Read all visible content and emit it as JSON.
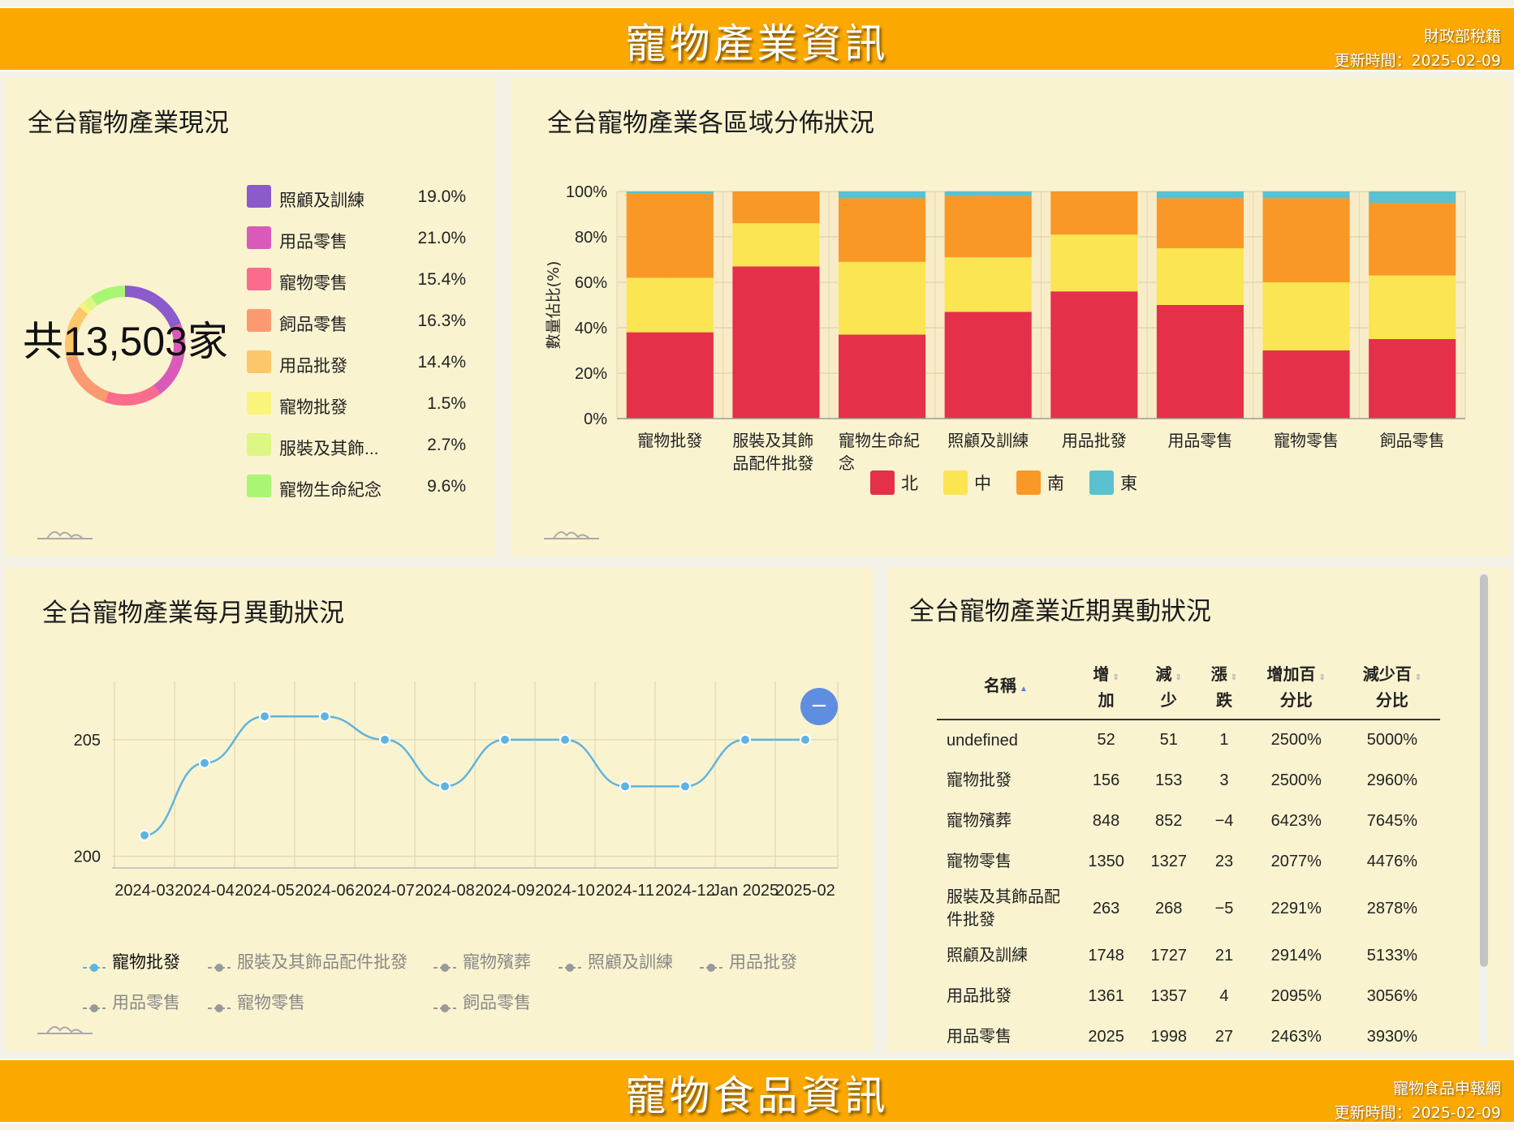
{
  "header": {
    "title": "寵物產業資訊",
    "source": "財政部稅籍",
    "updated": "更新時間：2025-02-09"
  },
  "footer": {
    "title": "寵物食品資訊",
    "source": "寵物食品申報網",
    "updated": "更新時間：2025-02-09"
  },
  "panel1": {
    "title": "全台寵物產業現況",
    "total": "共13,503家"
  },
  "panel2": {
    "title": "全台寵物產業各區域分佈狀況",
    "ylabel": "數量佔比(%)"
  },
  "panel3": {
    "title": "全台寵物產業每月異動狀況",
    "button": "−"
  },
  "panel4": {
    "title": "全台寵物產業近期異動狀況",
    "columns": [
      {
        "l1": "名稱",
        "l2": ""
      },
      {
        "l1": "增",
        "l2": "加"
      },
      {
        "l1": "減",
        "l2": "少"
      },
      {
        "l1": "漲",
        "l2": "跌"
      },
      {
        "l1": "增加百",
        "l2": "分比"
      },
      {
        "l1": "減少百",
        "l2": "分比"
      }
    ],
    "rows": [
      {
        "name": "undefined",
        "inc": "52",
        "dec": "51",
        "chg": "1",
        "incp": "2500%",
        "decp": "5000%"
      },
      {
        "name": "寵物批發",
        "inc": "156",
        "dec": "153",
        "chg": "3",
        "incp": "2500%",
        "decp": "2960%"
      },
      {
        "name": "寵物殯葬",
        "inc": "848",
        "dec": "852",
        "chg": "−4",
        "incp": "6423%",
        "decp": "7645%"
      },
      {
        "name": "寵物零售",
        "inc": "1350",
        "dec": "1327",
        "chg": "23",
        "incp": "2077%",
        "decp": "4476%"
      },
      {
        "name": "服裝及其飾品配件批發",
        "inc": "263",
        "dec": "268",
        "chg": "−5",
        "incp": "2291%",
        "decp": "2878%"
      },
      {
        "name": "照顧及訓練",
        "inc": "1748",
        "dec": "1727",
        "chg": "21",
        "incp": "2914%",
        "decp": "5133%"
      },
      {
        "name": "用品批發",
        "inc": "1361",
        "dec": "1357",
        "chg": "4",
        "incp": "2095%",
        "decp": "3056%"
      },
      {
        "name": "用品零售",
        "inc": "2025",
        "dec": "1998",
        "chg": "27",
        "incp": "2463%",
        "decp": "3930%"
      }
    ]
  },
  "chart_data": [
    {
      "type": "pie",
      "variant": "donut",
      "categories": [
        "照顧及訓練",
        "用品零售",
        "寵物零售",
        "飼品零售",
        "用品批發",
        "寵物批發",
        "服裝及其飾...",
        "寵物生命紀念"
      ],
      "values": [
        19.0,
        21.0,
        15.4,
        16.3,
        14.4,
        1.5,
        2.7,
        9.6
      ],
      "labels": [
        "19.0%",
        "21.0%",
        "15.4%",
        "16.3%",
        "14.4%",
        "1.5%",
        "2.7%",
        "9.6%"
      ],
      "colors": [
        "#8b5acb",
        "#d95bb9",
        "#fb6b8d",
        "#fb9a70",
        "#fcc66a",
        "#f8f47c",
        "#dcf784",
        "#a9f672"
      ],
      "legend": "right"
    },
    {
      "type": "bar",
      "stacked": true,
      "percent": true,
      "categories": [
        "寵物批發",
        "服裝及其飾品配件批發",
        "寵物生命紀念",
        "照顧及訓練",
        "用品批發",
        "用品零售",
        "寵物零售",
        "飼品零售"
      ],
      "category_lines": [
        [
          "寵物批發"
        ],
        [
          "服裝及其飾",
          "品配件批發"
        ],
        [
          "寵物生命紀",
          "念"
        ],
        [
          "照顧及訓練"
        ],
        [
          "用品批發"
        ],
        [
          "用品零售"
        ],
        [
          "寵物零售"
        ],
        [
          "飼品零售"
        ]
      ],
      "series": [
        {
          "name": "北",
          "color": "#e5304a",
          "values": [
            38,
            67,
            37,
            47,
            56,
            50,
            30,
            35
          ]
        },
        {
          "name": "中",
          "color": "#fbe553",
          "values": [
            24,
            19,
            32,
            24,
            25,
            25,
            30,
            28
          ]
        },
        {
          "name": "南",
          "color": "#f99826",
          "values": [
            37,
            14,
            28,
            27,
            19,
            22,
            37,
            32
          ]
        },
        {
          "name": "東",
          "color": "#5bc0cf",
          "values": [
            1,
            0,
            3,
            2,
            0,
            3,
            3,
            5
          ]
        }
      ],
      "ylim": [
        0,
        100
      ],
      "yticks": [
        "0%",
        "20%",
        "40%",
        "60%",
        "80%",
        "100%"
      ],
      "ylabel": "數量佔比(%)",
      "grid": true,
      "legend": "bottom"
    },
    {
      "type": "line",
      "x": [
        "2024-03",
        "2024-04",
        "2024-05",
        "2024-06",
        "2024-07",
        "2024-08",
        "2024-09",
        "2024-10",
        "2024-11",
        "2024-12",
        "Jan 2025",
        "2025-02"
      ],
      "series": [
        {
          "name": "寵物批發",
          "color": "#5eb4de",
          "values": [
            200.9,
            204.0,
            206.0,
            206.0,
            205.0,
            203.0,
            205.0,
            205.0,
            203.0,
            203.0,
            205.0,
            205.0
          ],
          "active": true
        },
        {
          "name": "服裝及其飾品配件批發",
          "active": false
        },
        {
          "name": "寵物殯葬",
          "active": false
        },
        {
          "name": "照顧及訓練",
          "active": false
        },
        {
          "name": "用品批發",
          "active": false
        },
        {
          "name": "用品零售",
          "active": false
        },
        {
          "name": "寵物零售",
          "active": false
        },
        {
          "name": "飼品零售",
          "active": false
        }
      ],
      "yticks": [
        200,
        205
      ],
      "ylim": [
        199.5,
        207.5
      ],
      "grid": true,
      "legend": "bottom"
    }
  ]
}
